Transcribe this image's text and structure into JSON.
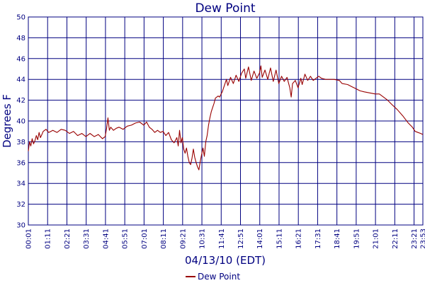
{
  "chart_data": {
    "type": "line",
    "title": "Dew Point",
    "xlabel": "04/13/10 (EDT)",
    "ylabel": "Degrees F",
    "ylim": [
      30,
      50
    ],
    "yticks": [
      "30",
      "32",
      "34",
      "36",
      "38",
      "40",
      "42",
      "44",
      "46",
      "48",
      "50"
    ],
    "xlim": [
      "00:01",
      "23:53"
    ],
    "xticks": [
      "00:01",
      "01:11",
      "02:21",
      "03:31",
      "04:41",
      "05:51",
      "07:01",
      "08:11",
      "09:21",
      "10:31",
      "11:41",
      "12:51",
      "14:01",
      "15:11",
      "16:21",
      "17:31",
      "18:41",
      "19:51",
      "21:01",
      "22:11",
      "23:21",
      "23:53"
    ],
    "grid": true,
    "legend_position": "bottom-center",
    "colors": {
      "series": "#990000",
      "grid": "#000080",
      "text": "#000080"
    },
    "series": [
      {
        "name": "Dew Point",
        "points": [
          [
            "00:01",
            37.1
          ],
          [
            "00:05",
            38.0
          ],
          [
            "00:10",
            37.6
          ],
          [
            "00:15",
            38.3
          ],
          [
            "00:20",
            37.8
          ],
          [
            "00:25",
            38.1
          ],
          [
            "00:30",
            38.6
          ],
          [
            "00:35",
            38.2
          ],
          [
            "00:40",
            38.9
          ],
          [
            "00:45",
            38.4
          ],
          [
            "00:50",
            38.7
          ],
          [
            "00:55",
            39.0
          ],
          [
            "01:05",
            39.2
          ],
          [
            "01:15",
            38.9
          ],
          [
            "01:30",
            39.1
          ],
          [
            "01:45",
            38.9
          ],
          [
            "02:00",
            39.2
          ],
          [
            "02:15",
            39.1
          ],
          [
            "02:30",
            38.8
          ],
          [
            "02:45",
            39.0
          ],
          [
            "03:00",
            38.6
          ],
          [
            "03:15",
            38.8
          ],
          [
            "03:30",
            38.5
          ],
          [
            "03:45",
            38.8
          ],
          [
            "04:00",
            38.5
          ],
          [
            "04:15",
            38.7
          ],
          [
            "04:30",
            38.3
          ],
          [
            "04:40",
            38.5
          ],
          [
            "04:45",
            39.3
          ],
          [
            "04:50",
            40.3
          ],
          [
            "04:55",
            39.1
          ],
          [
            "05:00",
            39.4
          ],
          [
            "05:10",
            39.1
          ],
          [
            "05:20",
            39.3
          ],
          [
            "05:30",
            39.4
          ],
          [
            "05:45",
            39.2
          ],
          [
            "06:00",
            39.5
          ],
          [
            "06:15",
            39.6
          ],
          [
            "06:30",
            39.8
          ],
          [
            "06:45",
            39.9
          ],
          [
            "07:00",
            39.6
          ],
          [
            "07:10",
            39.9
          ],
          [
            "07:20",
            39.4
          ],
          [
            "07:30",
            39.2
          ],
          [
            "07:40",
            38.9
          ],
          [
            "07:50",
            39.1
          ],
          [
            "08:00",
            38.9
          ],
          [
            "08:10",
            39.0
          ],
          [
            "08:20",
            38.6
          ],
          [
            "08:30",
            38.9
          ],
          [
            "08:40",
            38.2
          ],
          [
            "08:50",
            37.9
          ],
          [
            "09:00",
            38.4
          ],
          [
            "09:05",
            37.6
          ],
          [
            "09:10",
            39.1
          ],
          [
            "09:15",
            37.9
          ],
          [
            "09:20",
            38.4
          ],
          [
            "09:25",
            37.3
          ],
          [
            "09:30",
            36.9
          ],
          [
            "09:35",
            37.4
          ],
          [
            "09:40",
            36.6
          ],
          [
            "09:45",
            36.0
          ],
          [
            "09:50",
            35.8
          ],
          [
            "09:55",
            36.4
          ],
          [
            "10:00",
            37.3
          ],
          [
            "10:05",
            36.5
          ],
          [
            "10:10",
            36.0
          ],
          [
            "10:15",
            35.6
          ],
          [
            "10:20",
            35.3
          ],
          [
            "10:25",
            36.1
          ],
          [
            "10:30",
            36.8
          ],
          [
            "10:35",
            37.4
          ],
          [
            "10:40",
            36.6
          ],
          [
            "10:45",
            38.0
          ],
          [
            "10:50",
            38.6
          ],
          [
            "10:55",
            39.6
          ],
          [
            "11:00",
            40.3
          ],
          [
            "11:05",
            40.9
          ],
          [
            "11:10",
            41.3
          ],
          [
            "11:15",
            41.7
          ],
          [
            "11:20",
            42.2
          ],
          [
            "11:30",
            42.4
          ],
          [
            "11:35",
            42.3
          ],
          [
            "11:45",
            42.8
          ],
          [
            "11:55",
            43.6
          ],
          [
            "12:00",
            44.0
          ],
          [
            "12:05",
            43.4
          ],
          [
            "12:15",
            44.2
          ],
          [
            "12:25",
            43.6
          ],
          [
            "12:35",
            44.4
          ],
          [
            "12:45",
            43.8
          ],
          [
            "12:55",
            44.6
          ],
          [
            "13:05",
            45.0
          ],
          [
            "13:10",
            44.1
          ],
          [
            "13:20",
            45.2
          ],
          [
            "13:30",
            43.9
          ],
          [
            "13:40",
            44.8
          ],
          [
            "13:50",
            44.1
          ],
          [
            "14:00",
            44.6
          ],
          [
            "14:05",
            45.3
          ],
          [
            "14:10",
            44.2
          ],
          [
            "14:20",
            44.9
          ],
          [
            "14:30",
            44.0
          ],
          [
            "14:40",
            45.1
          ],
          [
            "14:50",
            43.8
          ],
          [
            "15:00",
            44.9
          ],
          [
            "15:10",
            43.6
          ],
          [
            "15:20",
            44.3
          ],
          [
            "15:30",
            43.8
          ],
          [
            "15:40",
            44.2
          ],
          [
            "15:50",
            43.2
          ],
          [
            "15:55",
            42.3
          ],
          [
            "16:00",
            43.6
          ],
          [
            "16:10",
            43.9
          ],
          [
            "16:20",
            43.2
          ],
          [
            "16:30",
            44.1
          ],
          [
            "16:35",
            43.5
          ],
          [
            "16:45",
            44.5
          ],
          [
            "16:55",
            43.9
          ],
          [
            "17:05",
            44.3
          ],
          [
            "17:15",
            43.9
          ],
          [
            "17:25",
            44.1
          ],
          [
            "17:35",
            44.3
          ],
          [
            "17:45",
            44.1
          ],
          [
            "18:00",
            44.0
          ],
          [
            "18:30",
            44.0
          ],
          [
            "18:50",
            43.9
          ],
          [
            "19:00",
            43.6
          ],
          [
            "19:20",
            43.5
          ],
          [
            "19:35",
            43.3
          ],
          [
            "19:50",
            43.1
          ],
          [
            "20:05",
            42.9
          ],
          [
            "20:20",
            42.8
          ],
          [
            "20:40",
            42.7
          ],
          [
            "21:00",
            42.6
          ],
          [
            "21:15",
            42.6
          ],
          [
            "21:30",
            42.3
          ],
          [
            "21:45",
            42.0
          ],
          [
            "22:00",
            41.6
          ],
          [
            "22:20",
            41.1
          ],
          [
            "22:40",
            40.5
          ],
          [
            "23:00",
            39.8
          ],
          [
            "23:15",
            39.4
          ],
          [
            "23:25",
            39.0
          ],
          [
            "23:35",
            38.9
          ],
          [
            "23:45",
            38.8
          ],
          [
            "23:53",
            38.7
          ]
        ]
      }
    ]
  }
}
